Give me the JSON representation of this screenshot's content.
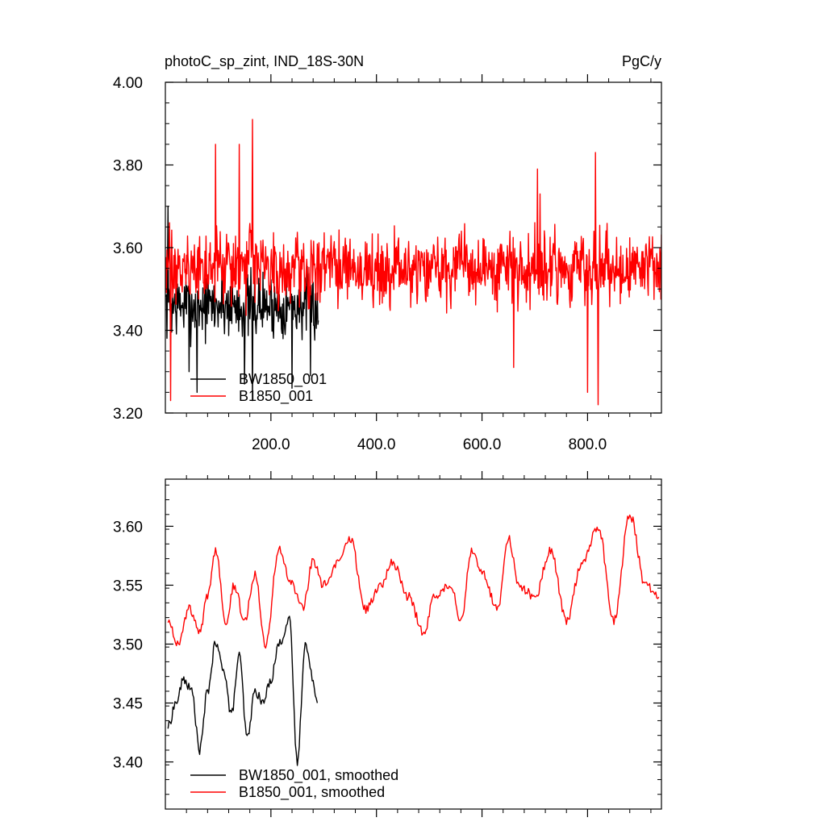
{
  "figure": {
    "title_left": "photoC_sp_zint, IND_18S-30N",
    "title_right": "PgC/y"
  },
  "chart_data": [
    {
      "type": "line",
      "xlim": [
        0,
        940
      ],
      "ylim": [
        3.2,
        4.0
      ],
      "y_ticks": [
        3.2,
        3.4,
        3.6,
        3.8,
        4.0
      ],
      "y_tick_labels": [
        "3.20",
        "3.40",
        "3.60",
        "3.80",
        "4.00"
      ],
      "x_ticks": [
        200,
        400,
        600,
        800
      ],
      "x_tick_labels": [
        "200.0",
        "400.0",
        "600.0",
        "800.0"
      ],
      "legend_position": "bottom-left",
      "series": [
        {
          "name": "BW1850_001",
          "color": "#000000",
          "x_start": 1,
          "x_end": 290,
          "samples": 290,
          "mean": 3.46,
          "amplitude": 0.09,
          "highlights": [
            [
              5,
              3.7
            ],
            [
              60,
              3.25
            ],
            [
              45,
              3.3
            ],
            [
              150,
              3.27
            ],
            [
              165,
              3.23
            ],
            [
              240,
              3.26
            ],
            [
              275,
              3.29
            ]
          ]
        },
        {
          "name": "B1850_001",
          "color": "#ff0000",
          "x_start": 1,
          "x_end": 940,
          "samples": 940,
          "mean": 3.55,
          "amplitude": 0.1,
          "highlights": [
            [
              10,
              3.23
            ],
            [
              95,
              3.85
            ],
            [
              140,
              3.85
            ],
            [
              165,
              3.91
            ],
            [
              815,
              3.83
            ],
            [
              820,
              3.22
            ],
            [
              800,
              3.25
            ],
            [
              660,
              3.31
            ],
            [
              705,
              3.79
            ],
            [
              710,
              3.73
            ]
          ]
        }
      ]
    },
    {
      "type": "line",
      "xlim": [
        0,
        940
      ],
      "ylim": [
        3.36,
        3.64
      ],
      "y_ticks": [
        3.4,
        3.45,
        3.5,
        3.55,
        3.6
      ],
      "y_tick_labels": [
        "3.40",
        "3.45",
        "3.50",
        "3.55",
        "3.60"
      ],
      "x_ticks": [
        200,
        400,
        600,
        800
      ],
      "x_tick_labels": [],
      "legend_position": "bottom-left",
      "series": [
        {
          "name": "BW1850_001, smoothed",
          "color": "#000000",
          "x": [
            5,
            20,
            35,
            50,
            65,
            80,
            95,
            110,
            125,
            140,
            155,
            170,
            185,
            200,
            215,
            235,
            250,
            265,
            280,
            288
          ],
          "y": [
            3.43,
            3.45,
            3.47,
            3.46,
            3.41,
            3.46,
            3.5,
            3.48,
            3.44,
            3.49,
            3.42,
            3.46,
            3.45,
            3.47,
            3.5,
            3.52,
            3.4,
            3.5,
            3.47,
            3.45
          ]
        },
        {
          "name": "B1850_001, smoothed",
          "color": "#ff0000",
          "x": [
            5,
            25,
            45,
            65,
            80,
            95,
            115,
            130,
            150,
            170,
            190,
            215,
            240,
            260,
            280,
            300,
            330,
            350,
            380,
            410,
            430,
            460,
            490,
            510,
            540,
            560,
            580,
            600,
            630,
            650,
            670,
            700,
            730,
            760,
            790,
            820,
            850,
            880,
            910,
            935
          ],
          "y": [
            3.52,
            3.5,
            3.53,
            3.51,
            3.54,
            3.58,
            3.52,
            3.55,
            3.52,
            3.56,
            3.5,
            3.58,
            3.55,
            3.53,
            3.57,
            3.55,
            3.57,
            3.59,
            3.53,
            3.55,
            3.57,
            3.54,
            3.51,
            3.54,
            3.55,
            3.52,
            3.58,
            3.56,
            3.53,
            3.59,
            3.55,
            3.54,
            3.58,
            3.52,
            3.57,
            3.6,
            3.52,
            3.61,
            3.55,
            3.54
          ]
        }
      ]
    }
  ]
}
